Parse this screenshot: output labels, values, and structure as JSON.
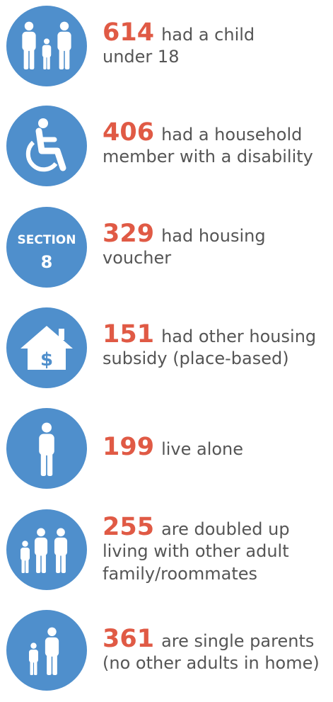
{
  "items": [
    {
      "number": "614",
      "lines": [
        "had a child",
        "under 18"
      ]
    },
    {
      "number": "406",
      "lines": [
        "had a household",
        "member with a disability"
      ]
    },
    {
      "number": "329",
      "lines": [
        "had housing",
        "voucher"
      ],
      "icon_text": [
        "SECTION",
        "8"
      ]
    },
    {
      "number": "151",
      "lines": [
        "had other housing",
        "subsidy (place-based)"
      ],
      "icon_text": [
        "$"
      ]
    },
    {
      "number": "199",
      "lines": [
        "live alone"
      ]
    },
    {
      "number": "255",
      "lines": [
        "are doubled up",
        "living with other adult",
        "family/roommates"
      ]
    },
    {
      "number": "361",
      "lines": [
        "are single parents",
        "(no other adults in home)"
      ]
    }
  ]
}
